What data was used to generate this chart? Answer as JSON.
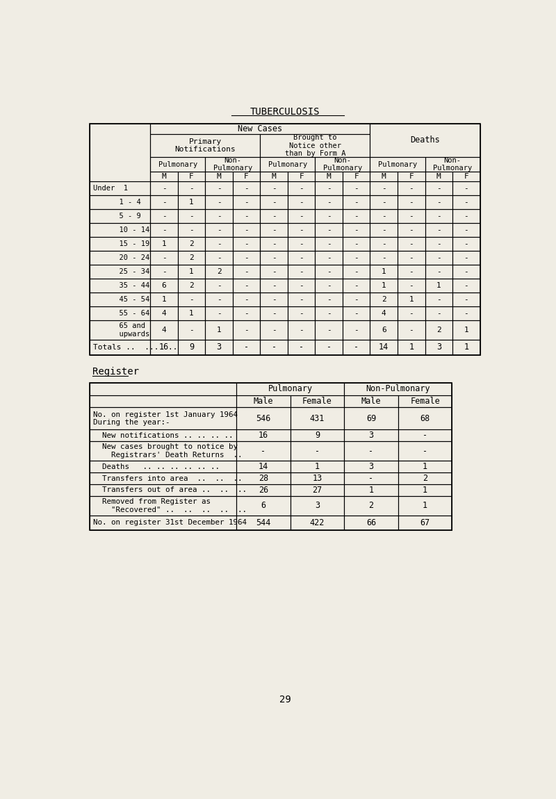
{
  "title": "TUBERCULOSIS",
  "page_number": "29",
  "background_color": "#f0ede4",
  "table1": {
    "age_groups": [
      "Under  1",
      "      1 - 4",
      "      5 - 9",
      "      10 - 14",
      "      15 - 19",
      "      20 - 24",
      "      25 - 34",
      "      35 - 44",
      "      45 - 54",
      "      55 - 64",
      "      65 and\n      upwards"
    ],
    "data": [
      [
        "-",
        "-",
        "-",
        "-",
        "-",
        "-",
        "-",
        "-",
        "-",
        "-",
        "-",
        "-"
      ],
      [
        "-",
        "1",
        "-",
        "-",
        "-",
        "-",
        "-",
        "-",
        "-",
        "-",
        "-",
        "-"
      ],
      [
        "-",
        "-",
        "-",
        "-",
        "-",
        "-",
        "-",
        "-",
        "-",
        "-",
        "-",
        "-"
      ],
      [
        "-",
        "-",
        "-",
        "-",
        "-",
        "-",
        "-",
        "-",
        "-",
        "-",
        "-",
        "-"
      ],
      [
        "1",
        "2",
        "-",
        "-",
        "-",
        "-",
        "-",
        "-",
        "-",
        "-",
        "-",
        "-"
      ],
      [
        "-",
        "2",
        "-",
        "-",
        "-",
        "-",
        "-",
        "-",
        "-",
        "-",
        "-",
        "-"
      ],
      [
        "-",
        "1",
        "2",
        "-",
        "-",
        "-",
        "-",
        "-",
        "1",
        "-",
        "-",
        "-"
      ],
      [
        "6",
        "2",
        "-",
        "-",
        "-",
        "-",
        "-",
        "-",
        "1",
        "-",
        "1",
        "-"
      ],
      [
        "1",
        "-",
        "-",
        "-",
        "-",
        "-",
        "-",
        "-",
        "2",
        "1",
        "-",
        "-"
      ],
      [
        "4",
        "1",
        "-",
        "-",
        "-",
        "-",
        "-",
        "-",
        "4",
        "-",
        "-",
        "-"
      ],
      [
        "4",
        "-",
        "1",
        "-",
        "-",
        "-",
        "-",
        "-",
        "6",
        "-",
        "2",
        "1"
      ]
    ],
    "totals": [
      "16",
      "9",
      "3",
      "-",
      "-",
      "-",
      "-",
      "-",
      "14",
      "1",
      "3",
      "1"
    ]
  },
  "register_title": "Register",
  "table2": {
    "rows": [
      [
        "No. on register 1st January 1964\nDuring the year:-",
        "546",
        "431",
        "69",
        "68"
      ],
      [
        "  New notifications .. .. .. ..",
        "16",
        "9",
        "3",
        "-"
      ],
      [
        "  New cases brought to notice by\n    Registrars' Death Returns  ..",
        "-",
        "-",
        "-",
        "-"
      ],
      [
        "  Deaths   .. .. .. .. .. ..",
        "14",
        "1",
        "3",
        "1"
      ],
      [
        "  Transfers into area  ..  ..  ..",
        "28",
        "13",
        "-",
        "2"
      ],
      [
        "  Transfers out of area ..  ..  ..",
        "26",
        "27",
        "1",
        "1"
      ],
      [
        "  Removed from Register as\n    \"Recovered\" ..  ..  ..  ..  ..",
        "6",
        "3",
        "2",
        "1"
      ]
    ],
    "footer": [
      "No. on register 31st December 1964",
      "544",
      "422",
      "66",
      "67"
    ]
  }
}
